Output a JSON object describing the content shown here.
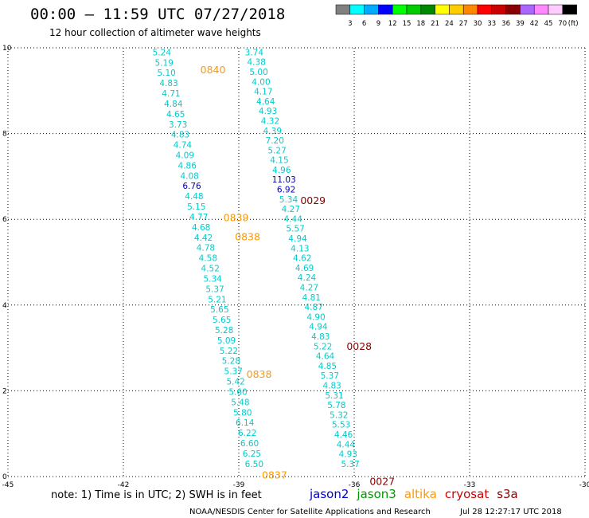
{
  "header": {
    "title": "00:00 – 11:59 UTC 07/27/2018",
    "subtitle": "12 hour collection of altimeter wave heights"
  },
  "color_legend": {
    "labels": [
      "3",
      "6",
      "9",
      "12",
      "15",
      "18",
      "21",
      "24",
      "27",
      "30",
      "33",
      "36",
      "39",
      "42",
      "45",
      "70"
    ],
    "unit": "(ft)",
    "colors": [
      "#808080",
      "#00ffff",
      "#00aaff",
      "#0000ff",
      "#00ff00",
      "#00cc00",
      "#008800",
      "#ffff00",
      "#ffcc00",
      "#ff8800",
      "#ff0000",
      "#cc0000",
      "#880000",
      "#aa66ff",
      "#ff88ff",
      "#ffccff",
      "#000000"
    ]
  },
  "footnote": {
    "note": "note: 1) Time is in UTC; 2) SWH is in feet",
    "satellites": [
      {
        "name": "jason2",
        "color": "#0000cc"
      },
      {
        "name": "jason3",
        "color": "#009900"
      },
      {
        "name": "altika",
        "color": "#ff9900"
      },
      {
        "name": "cryosat",
        "color": "#cc0000"
      },
      {
        "name": "s3a",
        "color": "#880000"
      }
    ],
    "credit": "NOAA/NESDIS Center for Satellite Applications and Research",
    "timestamp": "Jul 28 12:27:17 UTC 2018"
  },
  "chart_data": {
    "type": "scatter",
    "xlim": [
      -45,
      -30
    ],
    "ylim": [
      0,
      10
    ],
    "x_ticks": [
      "-45",
      "-42",
      "-39",
      "-36",
      "-33",
      "-30"
    ],
    "y_ticks": [
      "0",
      "2",
      "4",
      "6",
      "8",
      "10"
    ],
    "grid": true,
    "tracks": [
      {
        "satellite": "altika",
        "x_start": -41.0,
        "y_start": 9.9,
        "x_end": -38.6,
        "y_end": 0.3,
        "values": [
          "5.24",
          "5.19",
          "5.10",
          "4.83",
          "4.71",
          "4.84",
          "4.65",
          "3.73",
          "4.83",
          "4.74",
          "4.09",
          "4.86",
          "4.08",
          "6.76",
          "4.48",
          "5.15",
          "4.77",
          "4.68",
          "4.42",
          "4.78",
          "4.58",
          "4.52",
          "5.34",
          "5.37",
          "5.21",
          "5.65",
          "5.65",
          "5.28",
          "5.09",
          "5.22",
          "5.28",
          "5.37",
          "5.42",
          "5.60",
          "5.48",
          "5.80",
          "6.14",
          "6.22",
          "6.60",
          "6.25",
          "6.50"
        ],
        "value_colors": {
          "13": "#0000aa"
        }
      },
      {
        "satellite": "cryosat",
        "x_start": -38.6,
        "y_start": 9.9,
        "x_end": -36.1,
        "y_end": 0.3,
        "values": [
          "3.74",
          "4.38",
          "5.00",
          "4.00",
          "4.17",
          "4.64",
          "4.93",
          "4.32",
          "4.39",
          "7.20",
          "5.27",
          "4.15",
          "4.96",
          "11.03",
          "6.92",
          "5.34",
          "4.27",
          "4.44",
          "5.57",
          "4.94",
          "4.13",
          "4.62",
          "4.69",
          "4.24",
          "4.27",
          "4.81",
          "4.87",
          "4.90",
          "4.94",
          "4.83",
          "5.22",
          "4.64",
          "4.85",
          "5.37",
          "4.83",
          "5.31",
          "5.78",
          "5.32",
          "5.53",
          "4.46",
          "4.44",
          "4.93",
          "5.37"
        ],
        "value_colors": {
          "13": "#0000aa",
          "14": "#0000cc"
        }
      }
    ],
    "pass_times": [
      {
        "label": "0840",
        "x": -40.0,
        "y": 9.5,
        "color": "#ff9900"
      },
      {
        "label": "0839",
        "x": -39.4,
        "y": 6.05,
        "color": "#ff9900"
      },
      {
        "label": "0838",
        "x": -39.1,
        "y": 5.6,
        "color": "#ff9900"
      },
      {
        "label": "0838",
        "x": -38.8,
        "y": 2.4,
        "color": "#ff9900"
      },
      {
        "label": "0837",
        "x": -38.4,
        "y": 0.05,
        "color": "#ff9900"
      },
      {
        "label": "0029",
        "x": -37.4,
        "y": 6.45,
        "color": "#880000"
      },
      {
        "label": "0028",
        "x": -36.2,
        "y": 3.05,
        "color": "#880000"
      },
      {
        "label": "0027",
        "x": -35.6,
        "y": -0.1,
        "color": "#880000"
      }
    ]
  }
}
